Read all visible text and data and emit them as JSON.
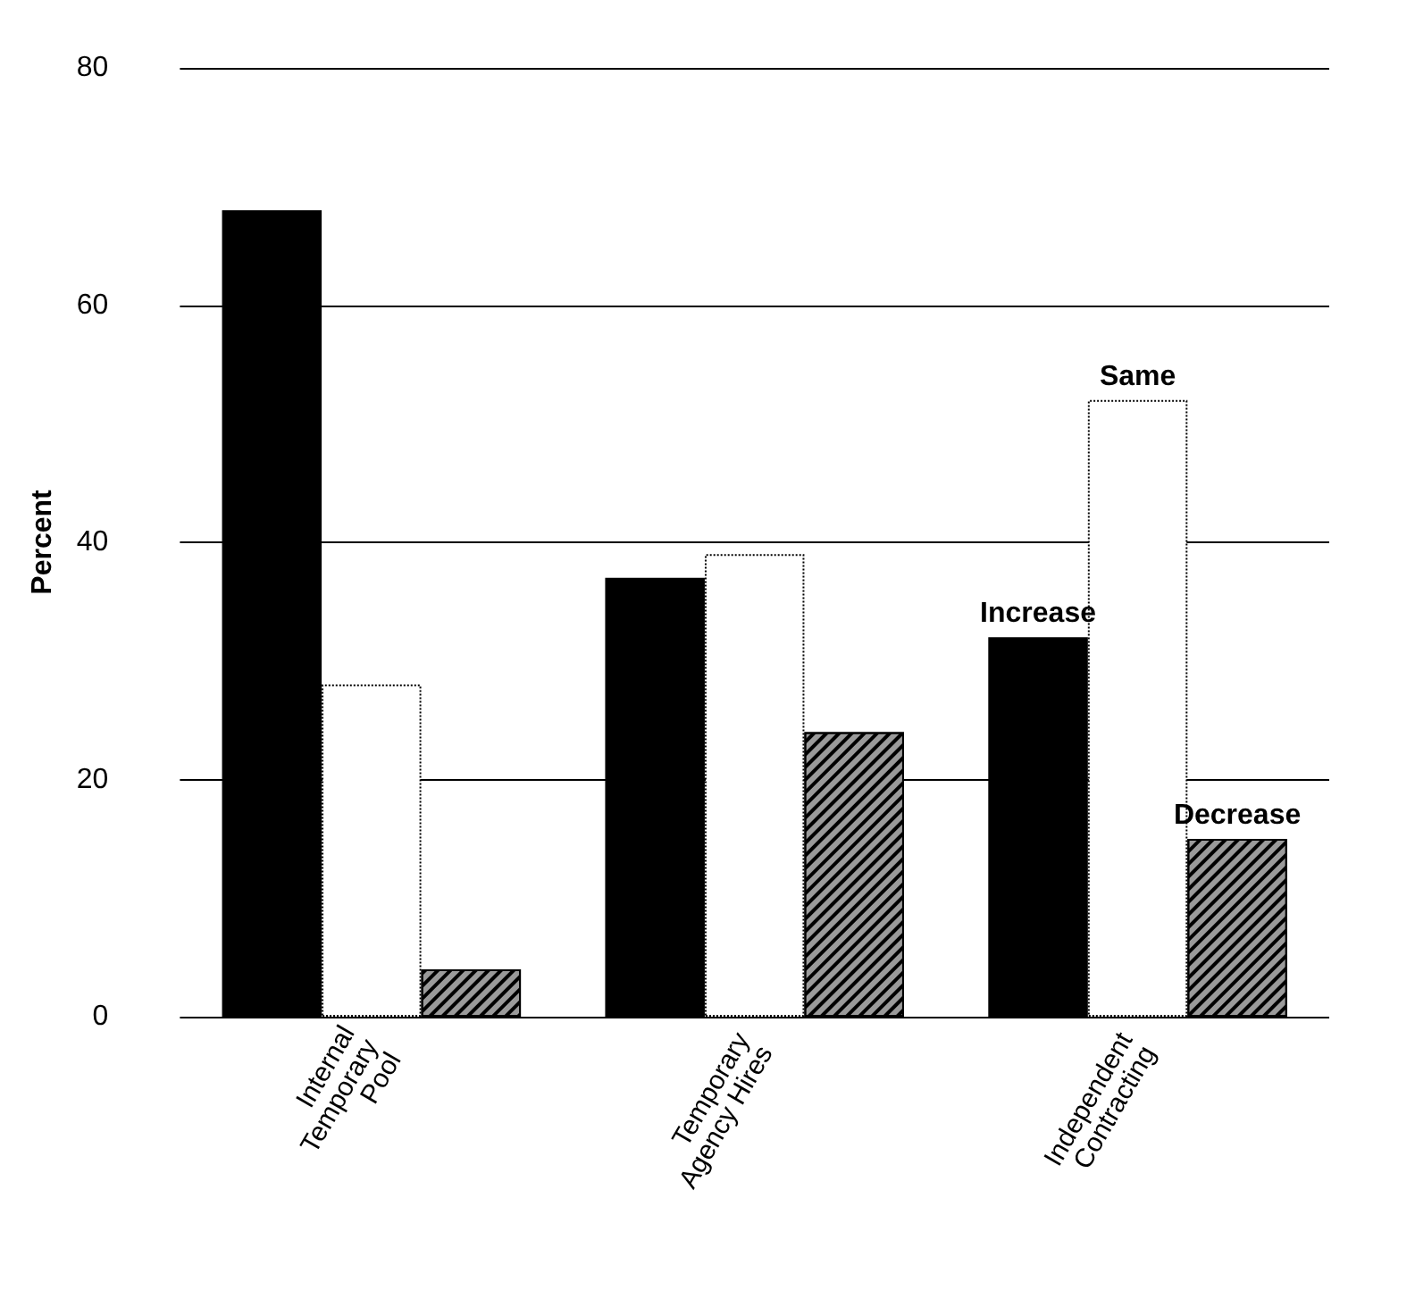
{
  "chart_data": {
    "type": "bar",
    "ylabel": "Percent",
    "categories": [
      "Internal\nTemporary\nPool",
      "Temporary\nAgency Hires",
      "Independent\nContracting"
    ],
    "series": [
      {
        "name": "Increase",
        "color": "#000000",
        "values": [
          68,
          37,
          32
        ]
      },
      {
        "name": "Same",
        "color": "#ffffff",
        "values": [
          28,
          39,
          52
        ]
      },
      {
        "name": "Decrease",
        "color": "#9a9a9a",
        "values": [
          4,
          24,
          15
        ]
      }
    ],
    "ylim": [
      0,
      80
    ],
    "yticks": [
      0,
      20,
      40,
      60,
      80
    ],
    "grid": "y",
    "legend": false
  }
}
